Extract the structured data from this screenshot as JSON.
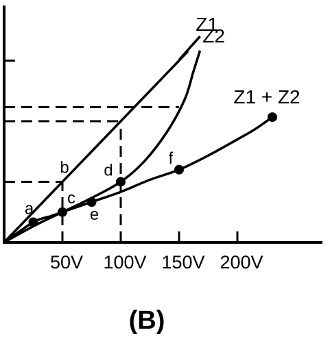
{
  "caption": "(B)",
  "chart_data": {
    "type": "line",
    "title": "",
    "xlabel": "",
    "ylabel": "",
    "xlim": [
      0,
      240
    ],
    "ylim": [
      0,
      100
    ],
    "x_ticks": [
      {
        "value": 50,
        "label": "50V"
      },
      {
        "value": 100,
        "label": "100V"
      },
      {
        "value": 150,
        "label": "150V"
      },
      {
        "value": 200,
        "label": "200V"
      }
    ],
    "y_ticks": [
      30,
      60,
      90
    ],
    "series": [
      {
        "name": "Z1",
        "points": [
          [
            0,
            0
          ],
          [
            50,
            30
          ],
          [
            150,
            90
          ],
          [
            151,
            91
          ],
          [
            168,
            102
          ]
        ]
      },
      {
        "name": "Z2",
        "points": [
          [
            0,
            0
          ],
          [
            25,
            8
          ],
          [
            50,
            15
          ],
          [
            75,
            22
          ],
          [
            100,
            30
          ],
          [
            120,
            40
          ],
          [
            140,
            55
          ],
          [
            155,
            71
          ],
          [
            162,
            84
          ],
          [
            168,
            95
          ]
        ]
      },
      {
        "name": "Z1 + Z2",
        "points": [
          [
            0,
            0
          ],
          [
            25,
            10
          ],
          [
            40,
            13
          ],
          [
            50,
            15
          ],
          [
            75,
            20
          ],
          [
            100,
            25
          ],
          [
            125,
            31
          ],
          [
            150,
            36
          ],
          [
            175,
            43
          ],
          [
            200,
            51
          ],
          [
            215,
            56
          ],
          [
            230,
            62
          ]
        ]
      }
    ],
    "marked_points": [
      {
        "label": "a",
        "x": 25,
        "y": 10
      },
      {
        "label": "c",
        "x": 50,
        "y": 15
      },
      {
        "label": "e",
        "x": 75,
        "y": 20
      },
      {
        "label": "d",
        "x": 100,
        "y": 30
      },
      {
        "label": "f",
        "x": 150,
        "y": 36
      },
      {
        "label": "",
        "x": 230,
        "y": 62
      }
    ],
    "point_labels_unmarked": [
      {
        "label": "b",
        "x": 50,
        "y": 30
      }
    ],
    "dashed_guides": [
      {
        "type": "h",
        "y": 30,
        "x_end": 50
      },
      {
        "type": "v",
        "x": 50,
        "y_end": 30
      },
      {
        "type": "h",
        "y": 60,
        "x_end": 100
      },
      {
        "type": "v",
        "x": 100,
        "y_end": 60
      },
      {
        "type": "h",
        "y": 67,
        "x_end": 150
      }
    ]
  }
}
